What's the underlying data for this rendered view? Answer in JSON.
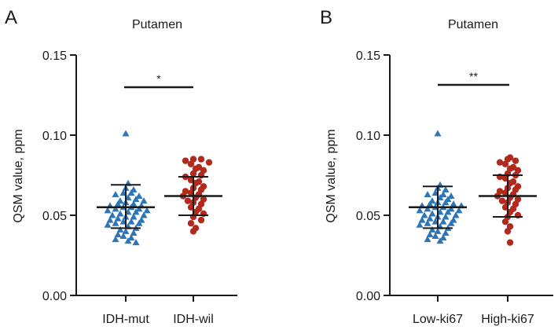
{
  "chart_data": [
    {
      "panel_label": "A",
      "type": "scatter",
      "title": "Putamen",
      "ylabel": "QSM value, ppm",
      "xlabel": "",
      "ylim": [
        0,
        0.15
      ],
      "yticks": [
        "0.00",
        "0.05",
        "0.10",
        "0.15"
      ],
      "ytick_values": [
        0,
        0.05,
        0.1,
        0.15
      ],
      "categories": [
        "IDH-mut",
        "IDH-wil"
      ],
      "series": [
        {
          "name": "IDH-mut",
          "marker": "triangle",
          "color": "#2e75b6",
          "values": [
            0.101,
            0.07,
            0.067,
            0.066,
            0.064,
            0.064,
            0.063,
            0.062,
            0.061,
            0.06,
            0.059,
            0.059,
            0.058,
            0.057,
            0.057,
            0.056,
            0.056,
            0.055,
            0.055,
            0.054,
            0.054,
            0.053,
            0.053,
            0.052,
            0.052,
            0.051,
            0.05,
            0.05,
            0.049,
            0.049,
            0.048,
            0.047,
            0.047,
            0.046,
            0.046,
            0.045,
            0.045,
            0.044,
            0.043,
            0.042,
            0.041,
            0.04,
            0.039,
            0.038,
            0.037,
            0.036,
            0.035,
            0.034,
            0.033
          ],
          "mean": 0.055,
          "sd_low": 0.042,
          "sd_high": 0.069
        },
        {
          "name": "IDH-wil",
          "marker": "circle",
          "color": "#b22a1e",
          "values": [
            0.085,
            0.085,
            0.084,
            0.083,
            0.082,
            0.08,
            0.079,
            0.078,
            0.076,
            0.075,
            0.074,
            0.072,
            0.071,
            0.07,
            0.068,
            0.067,
            0.066,
            0.065,
            0.064,
            0.063,
            0.062,
            0.061,
            0.06,
            0.059,
            0.058,
            0.057,
            0.055,
            0.054,
            0.052,
            0.051,
            0.049,
            0.047,
            0.045,
            0.042,
            0.04
          ],
          "mean": 0.062,
          "sd_low": 0.05,
          "sd_high": 0.074
        }
      ],
      "significance": "*"
    },
    {
      "panel_label": "B",
      "type": "scatter",
      "title": "Putamen",
      "ylabel": "QSM value, ppm",
      "xlabel": "",
      "ylim": [
        0,
        0.15
      ],
      "yticks": [
        "0.00",
        "0.05",
        "0.10",
        "0.15"
      ],
      "ytick_values": [
        0,
        0.05,
        0.1,
        0.15
      ],
      "categories": [
        "Low-ki67",
        "High-ki67"
      ],
      "series": [
        {
          "name": "Low-ki67",
          "marker": "triangle",
          "color": "#2e75b6",
          "values": [
            0.101,
            0.069,
            0.067,
            0.066,
            0.064,
            0.063,
            0.063,
            0.062,
            0.061,
            0.06,
            0.059,
            0.058,
            0.058,
            0.057,
            0.057,
            0.056,
            0.056,
            0.055,
            0.055,
            0.054,
            0.054,
            0.053,
            0.053,
            0.052,
            0.052,
            0.051,
            0.05,
            0.05,
            0.049,
            0.049,
            0.048,
            0.047,
            0.047,
            0.046,
            0.046,
            0.045,
            0.045,
            0.044,
            0.043,
            0.042,
            0.041,
            0.04,
            0.039,
            0.038,
            0.037,
            0.036,
            0.035,
            0.034
          ],
          "mean": 0.055,
          "sd_low": 0.042,
          "sd_high": 0.068
        },
        {
          "name": "High-ki67",
          "marker": "circle",
          "color": "#b22a1e",
          "values": [
            0.086,
            0.085,
            0.084,
            0.083,
            0.082,
            0.08,
            0.079,
            0.078,
            0.076,
            0.075,
            0.074,
            0.073,
            0.071,
            0.07,
            0.068,
            0.067,
            0.066,
            0.065,
            0.064,
            0.063,
            0.062,
            0.061,
            0.06,
            0.059,
            0.058,
            0.057,
            0.055,
            0.054,
            0.052,
            0.05,
            0.049,
            0.046,
            0.043,
            0.04,
            0.033
          ],
          "mean": 0.062,
          "sd_low": 0.049,
          "sd_high": 0.075
        }
      ],
      "significance": "**"
    }
  ]
}
